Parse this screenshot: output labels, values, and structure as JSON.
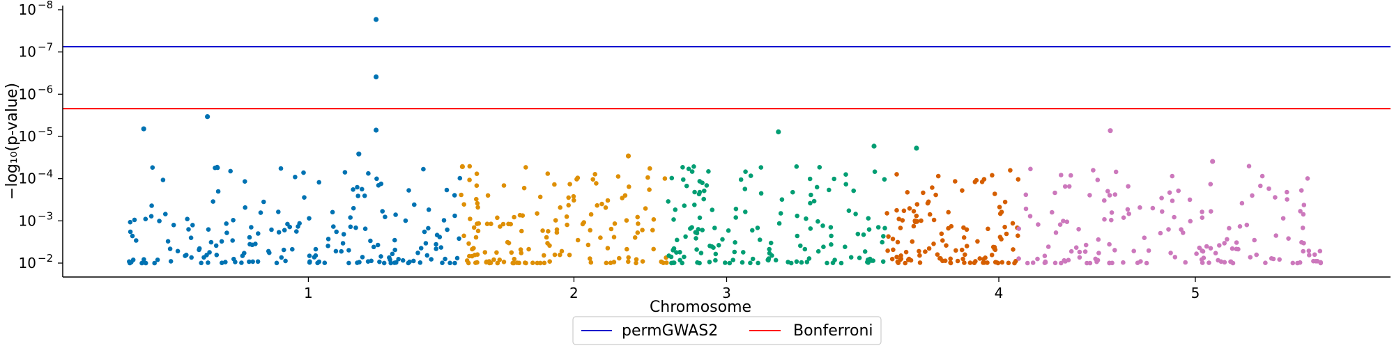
{
  "chart_data": {
    "type": "scatter",
    "plot": "manhattan",
    "xlabel": "Chromosome",
    "ylabel": "−log₁₀(p-value)",
    "y_scale": "log",
    "ylim": [
      0.009,
      1.1e-08
    ],
    "y_ticks": [
      {
        "value": 0.01,
        "base": "10",
        "exp": "−2"
      },
      {
        "value": 0.001,
        "base": "10",
        "exp": "−3"
      },
      {
        "value": 0.0001,
        "base": "10",
        "exp": "−4"
      },
      {
        "value": 1e-05,
        "base": "10",
        "exp": "−5"
      },
      {
        "value": 1e-06,
        "base": "10",
        "exp": "−6"
      },
      {
        "value": 1e-07,
        "base": "10",
        "exp": "−7"
      },
      {
        "value": 1e-08,
        "base": "10",
        "exp": "−8"
      }
    ],
    "x_ticks": [
      {
        "label": "1",
        "x": 0.185
      },
      {
        "label": "2",
        "x": 0.385
      },
      {
        "label": "3",
        "x": 0.5
      },
      {
        "label": "4",
        "x": 0.705
      },
      {
        "label": "5",
        "x": 0.853
      }
    ],
    "grid": false,
    "legend_position": "bottom-center",
    "thresholds": [
      {
        "name": "permGWAS2",
        "p": 7.5e-08,
        "color": "#0000cc"
      },
      {
        "name": "Bonferroni",
        "p": 2.2e-06,
        "color": "#ff0000"
      }
    ],
    "colors": [
      "#0072b2",
      "#de8f05",
      "#029e73",
      "#d55e00",
      "#cc78bc"
    ],
    "highlight_points": [
      {
        "x": 0.236,
        "p": 1.7e-08,
        "group": 0
      },
      {
        "x": 0.236,
        "p": 3.9e-07,
        "group": 0
      },
      {
        "x": 0.236,
        "p": 7.1e-06,
        "group": 0
      },
      {
        "x": 0.061,
        "p": 6.6e-06,
        "group": 0
      },
      {
        "x": 0.109,
        "p": 3.4e-06,
        "group": 0
      },
      {
        "x": 0.223,
        "p": 2.6e-05,
        "group": 0
      },
      {
        "x": 0.539,
        "p": 7.8e-06,
        "group": 2
      },
      {
        "x": 0.611,
        "p": 1.7e-05,
        "group": 2
      },
      {
        "x": 0.643,
        "p": 1.9e-05,
        "group": 2
      },
      {
        "x": 0.789,
        "p": 7.3e-06,
        "group": 4
      },
      {
        "x": 0.866,
        "p": 3.9e-05,
        "group": 4
      },
      {
        "x": 0.426,
        "p": 2.9e-05,
        "group": 1
      },
      {
        "x": 0.301,
        "p": 5.2e-05,
        "group": 1
      }
    ],
    "groups": [
      {
        "label": "1",
        "x_range": [
          0.045,
          0.3
        ],
        "color_index": 0,
        "count": 190,
        "seed": 11
      },
      {
        "label": "2",
        "x_range": [
          0.3,
          0.455
        ],
        "color_index": 1,
        "count": 150,
        "seed": 23
      },
      {
        "label": "2",
        "x_range": [
          0.455,
          0.53
        ],
        "color_index": 2,
        "count": 80,
        "seed": 37
      },
      {
        "label": "3",
        "x_range": [
          0.53,
          0.62
        ],
        "color_index": 2,
        "count": 70,
        "seed": 41
      },
      {
        "label": "3",
        "x_range": [
          0.62,
          0.72
        ],
        "color_index": 3,
        "count": 120,
        "seed": 53
      },
      {
        "label": "4",
        "x_range": [
          0.72,
          0.95
        ],
        "color_index": 4,
        "count": 160,
        "seed": 67
      }
    ]
  },
  "legend": {
    "items": [
      {
        "label": "permGWAS2",
        "color": "#0000cc"
      },
      {
        "label": "Bonferroni",
        "color": "#ff0000"
      }
    ]
  }
}
